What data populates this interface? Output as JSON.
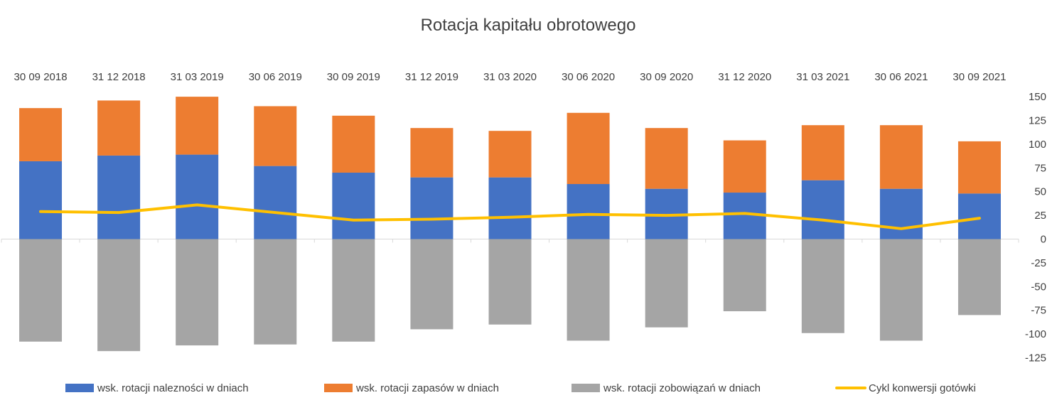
{
  "chart_data": {
    "type": "bar",
    "title": "Rotacja kapitału obrotowego",
    "categories": [
      "30 09 2018",
      "31 12 2018",
      "31 03 2019",
      "30 06 2019",
      "30 09 2019",
      "31 12 2019",
      "31 03 2020",
      "30 06 2020",
      "30 09 2020",
      "31 12 2020",
      "31 03 2021",
      "30 06 2021",
      "30 09 2021"
    ],
    "series": [
      {
        "name": "wsk. rotacji należności w dniach",
        "type": "stacked-bar",
        "color": "#4472C4",
        "values": [
          82,
          88,
          89,
          77,
          70,
          65,
          65,
          58,
          53,
          49,
          62,
          53,
          48
        ]
      },
      {
        "name": "wsk. rotacji zapasów w dniach",
        "type": "stacked-bar",
        "color": "#ED7D31",
        "values": [
          56,
          58,
          61,
          63,
          60,
          52,
          49,
          75,
          64,
          55,
          58,
          67,
          55
        ]
      },
      {
        "name": "wsk. rotacji zobowiązań w dniach",
        "type": "bar",
        "color": "#A5A5A5",
        "values": [
          -108,
          -118,
          -112,
          -111,
          -108,
          -95,
          -90,
          -107,
          -93,
          -76,
          -99,
          -107,
          -80
        ]
      },
      {
        "name": "Cykl konwersji gotówki",
        "type": "line",
        "color": "#FFC000",
        "values": [
          29,
          28,
          36,
          28,
          20,
          21,
          23,
          26,
          25,
          27,
          20,
          11,
          22
        ]
      }
    ],
    "legend_labels": [
      "wsk. rotacji nalezności w dniach",
      "wsk. rotacji zapasów w dniach",
      "wsk. rotacji zobowiązań w dniach",
      "Cykl konwersji gotówki"
    ],
    "ylim": [
      -125,
      150
    ],
    "yticks": [
      "150",
      "125",
      "100",
      "75",
      "50",
      "25",
      "0",
      "-25",
      "-50",
      "-75",
      "-100",
      "-125"
    ],
    "ytick_values": [
      150,
      125,
      100,
      75,
      50,
      25,
      0,
      -25,
      -50,
      -75,
      -100,
      -125
    ],
    "y_axis_side": "right",
    "category_labels_position": "top",
    "legend_position": "bottom",
    "grid": false
  }
}
